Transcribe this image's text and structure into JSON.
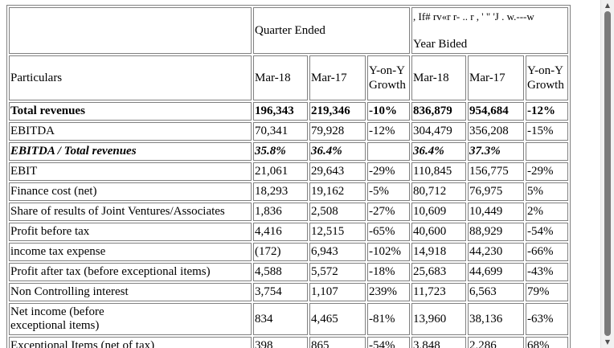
{
  "header": {
    "noise": ", If# rv«r r- .. r , ' \" 'J . w.---w",
    "quarter_ended": "Quarter Ended",
    "year_ended": "Year Bided",
    "particulars": "Particulars",
    "mar18": "Mar-18",
    "mar17": "Mar-17",
    "yoy_line1": "Y-on-Y",
    "yoy_line2": "Growth"
  },
  "rows": [
    {
      "label": "Total revenues",
      "q18": "196,343",
      "q17": "219,346",
      "qg": "-10%",
      "y18": "836,879",
      "y17": "954,684",
      "yg": "-12%"
    },
    {
      "label": "EBITDA",
      "q18": "70,341",
      "q17": "79,928",
      "qg": "-12%",
      "y18": "304,479",
      "y17": "356,208",
      "yg": "-15%"
    },
    {
      "label": "EBITDA / Total revenues",
      "q18": "35.8%",
      "q17": "36.4%",
      "qg": "",
      "y18": "36.4%",
      "y17": "37.3%",
      "yg": ""
    },
    {
      "label": "EBIT",
      "q18": "21,061",
      "q17": "29,643",
      "qg": "-29%",
      "y18": "110,845",
      "y17": "156,775",
      "yg": "-29%"
    },
    {
      "label": "Finance cost (net)",
      "q18": "18,293",
      "q17": "19,162",
      "qg": "-5%",
      "y18": "80,712",
      "y17": "76,975",
      "yg": "5%"
    },
    {
      "label": "Share of results of Joint Ventures/Associates",
      "q18": "1,836",
      "q17": "2,508",
      "qg": "-27%",
      "y18": "10,609",
      "y17": "10,449",
      "yg": "2%"
    },
    {
      "label": "Profit before tax",
      "q18": "4,416",
      "q17": "12,515",
      "qg": "-65%",
      "y18": "40,600",
      "y17": "88,929",
      "yg": "-54%"
    },
    {
      "label": "income tax expense",
      "q18": "(172)",
      "q17": "6,943",
      "qg": "-102%",
      "y18": "14,918",
      "y17": "44,230",
      "yg": "-66%"
    },
    {
      "label": "Profit after tax (before exceptional items)",
      "q18": "4,588",
      "q17": "5,572",
      "qg": "-18%",
      "y18": "25,683",
      "y17": "44,699",
      "yg": "-43%"
    },
    {
      "label": "Non Controlling interest",
      "q18": "3,754",
      "q17": "1,107",
      "qg": "239%",
      "y18": "11,723",
      "y17": "6,563",
      "yg": "79%"
    },
    {
      "label": "Net income (before exceptional items)",
      "q18": "834",
      "q17": "4,465",
      "qg": "-81%",
      "y18": "13,960",
      "y17": "38,136",
      "yg": "-63%"
    },
    {
      "label": "Exceptional Items (net of tax)",
      "q18": "398",
      "q17": "865",
      "qg": "-54%",
      "y18": "3,848",
      "y17": "2,286",
      "yg": "68%"
    }
  ],
  "scrollbar": {
    "up_icon": "scroll-up-arrow",
    "down_icon": "scroll-down-arrow"
  }
}
